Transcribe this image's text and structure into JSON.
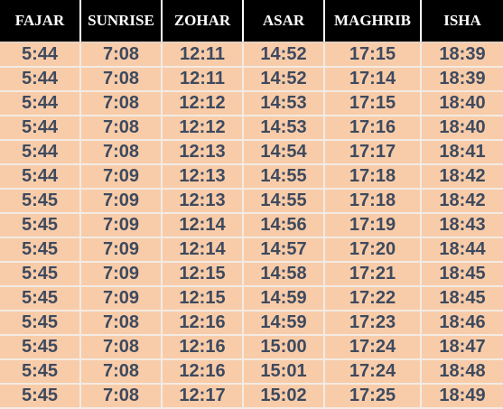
{
  "colors": {
    "header_background": "#000000",
    "header_text": "#ffffff",
    "cell_background": "#f8cca9",
    "cell_text": "#3e4a5e"
  },
  "table": {
    "headers": [
      "FAJAR",
      "SUNRISE",
      "ZOHAR",
      "ASAR",
      "MAGHRIB",
      "ISHA"
    ],
    "rows": [
      [
        "5:44",
        "7:08",
        "12:11",
        "14:52",
        "17:15",
        "18:39"
      ],
      [
        "5:44",
        "7:08",
        "12:11",
        "14:52",
        "17:14",
        "18:39"
      ],
      [
        "5:44",
        "7:08",
        "12:12",
        "14:53",
        "17:15",
        "18:40"
      ],
      [
        "5:44",
        "7:08",
        "12:12",
        "14:53",
        "17:16",
        "18:40"
      ],
      [
        "5:44",
        "7:08",
        "12:13",
        "14:54",
        "17:17",
        "18:41"
      ],
      [
        "5:44",
        "7:09",
        "12:13",
        "14:55",
        "17:18",
        "18:42"
      ],
      [
        "5:45",
        "7:09",
        "12:13",
        "14:55",
        "17:18",
        "18:42"
      ],
      [
        "5:45",
        "7:09",
        "12:14",
        "14:56",
        "17:19",
        "18:43"
      ],
      [
        "5:45",
        "7:09",
        "12:14",
        "14:57",
        "17:20",
        "18:44"
      ],
      [
        "5:45",
        "7:09",
        "12:15",
        "14:58",
        "17:21",
        "18:45"
      ],
      [
        "5:45",
        "7:09",
        "12:15",
        "14:59",
        "17:22",
        "18:45"
      ],
      [
        "5:45",
        "7:08",
        "12:16",
        "14:59",
        "17:23",
        "18:46"
      ],
      [
        "5:45",
        "7:08",
        "12:16",
        "15:00",
        "17:24",
        "18:47"
      ],
      [
        "5:45",
        "7:08",
        "12:16",
        "15:01",
        "17:24",
        "18:48"
      ],
      [
        "5:45",
        "7:08",
        "12:17",
        "15:02",
        "17:25",
        "18:49"
      ]
    ]
  }
}
